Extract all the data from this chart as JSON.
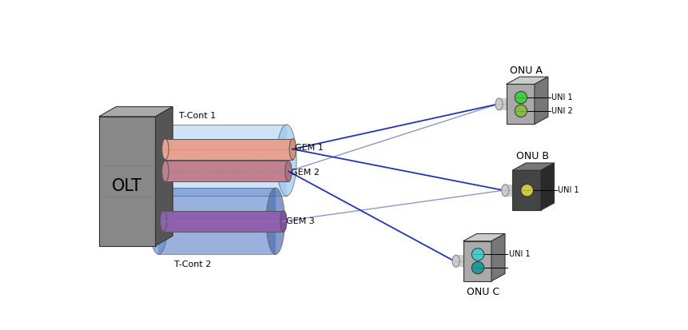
{
  "background_color": "#ffffff",
  "olt_label": "OLT",
  "tcont1_label": "T-Cont 1",
  "tcont2_label": "T-Cont 2",
  "gem1_label": "GEM 1",
  "gem2_label": "GEM 2",
  "gem3_label": "GEM 3",
  "onuA_label": "ONU A",
  "onuB_label": "ONU B",
  "onuC_label": "ONU C",
  "uni1_label": "UNI 1",
  "uni2_label": "UNI 2",
  "line_color_dark": "#2233bb",
  "line_color_light": "#8899cc",
  "onuA_uni1_color": "#44cc44",
  "onuA_uni2_color": "#88bb44",
  "onuB_uni1_color": "#cccc44",
  "onuC_uni1_color": "#44cccc",
  "onuC_uni2_color": "#229999"
}
